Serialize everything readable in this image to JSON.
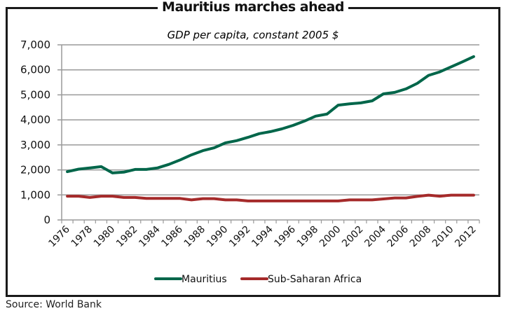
{
  "frame_title": "Mauritius marches ahead",
  "source": "Source: World Bank",
  "chart_data": {
    "type": "line",
    "title": "Mauritius marches ahead",
    "subtitle": "GDP per capita, constant 2005 $",
    "xlabel": "",
    "ylabel": "",
    "ylim": [
      0,
      7000
    ],
    "yticks": [
      0,
      1000,
      2000,
      3000,
      4000,
      5000,
      6000,
      7000
    ],
    "ytick_labels": [
      "0",
      "1,000",
      "2,000",
      "3,000",
      "4,000",
      "5,000",
      "6,000",
      "7,000"
    ],
    "grid": true,
    "legend_position": "bottom",
    "x": [
      1976,
      1977,
      1978,
      1979,
      1980,
      1981,
      1982,
      1983,
      1984,
      1985,
      1986,
      1987,
      1988,
      1989,
      1990,
      1991,
      1992,
      1993,
      1994,
      1995,
      1996,
      1997,
      1998,
      1999,
      2000,
      2001,
      2002,
      2003,
      2004,
      2005,
      2006,
      2007,
      2008,
      2009,
      2010,
      2011,
      2012
    ],
    "xtick_labels": [
      "1976",
      "1978",
      "1980",
      "1982",
      "1984",
      "1986",
      "1988",
      "1990",
      "1992",
      "1994",
      "1996",
      "1998",
      "2000",
      "2002",
      "2004",
      "2006",
      "2008",
      "2010",
      "2012"
    ],
    "series": [
      {
        "name": "Mauritius",
        "color": "#00664a",
        "values": [
          1930,
          2030,
          2080,
          2130,
          1880,
          1910,
          2020,
          2020,
          2080,
          2220,
          2400,
          2600,
          2770,
          2880,
          3080,
          3170,
          3300,
          3450,
          3530,
          3640,
          3780,
          3950,
          4150,
          4230,
          4590,
          4640,
          4680,
          4760,
          5040,
          5100,
          5240,
          5460,
          5780,
          5920,
          6120,
          6320,
          6530
        ]
      },
      {
        "name": "Sub-Saharan Africa",
        "color": "#a52a2a",
        "values": [
          950,
          950,
          900,
          950,
          950,
          900,
          900,
          860,
          860,
          860,
          860,
          800,
          850,
          850,
          800,
          800,
          760,
          760,
          760,
          760,
          760,
          760,
          760,
          760,
          760,
          800,
          800,
          800,
          840,
          880,
          880,
          940,
          990,
          950,
          990,
          990,
          990
        ]
      }
    ]
  }
}
